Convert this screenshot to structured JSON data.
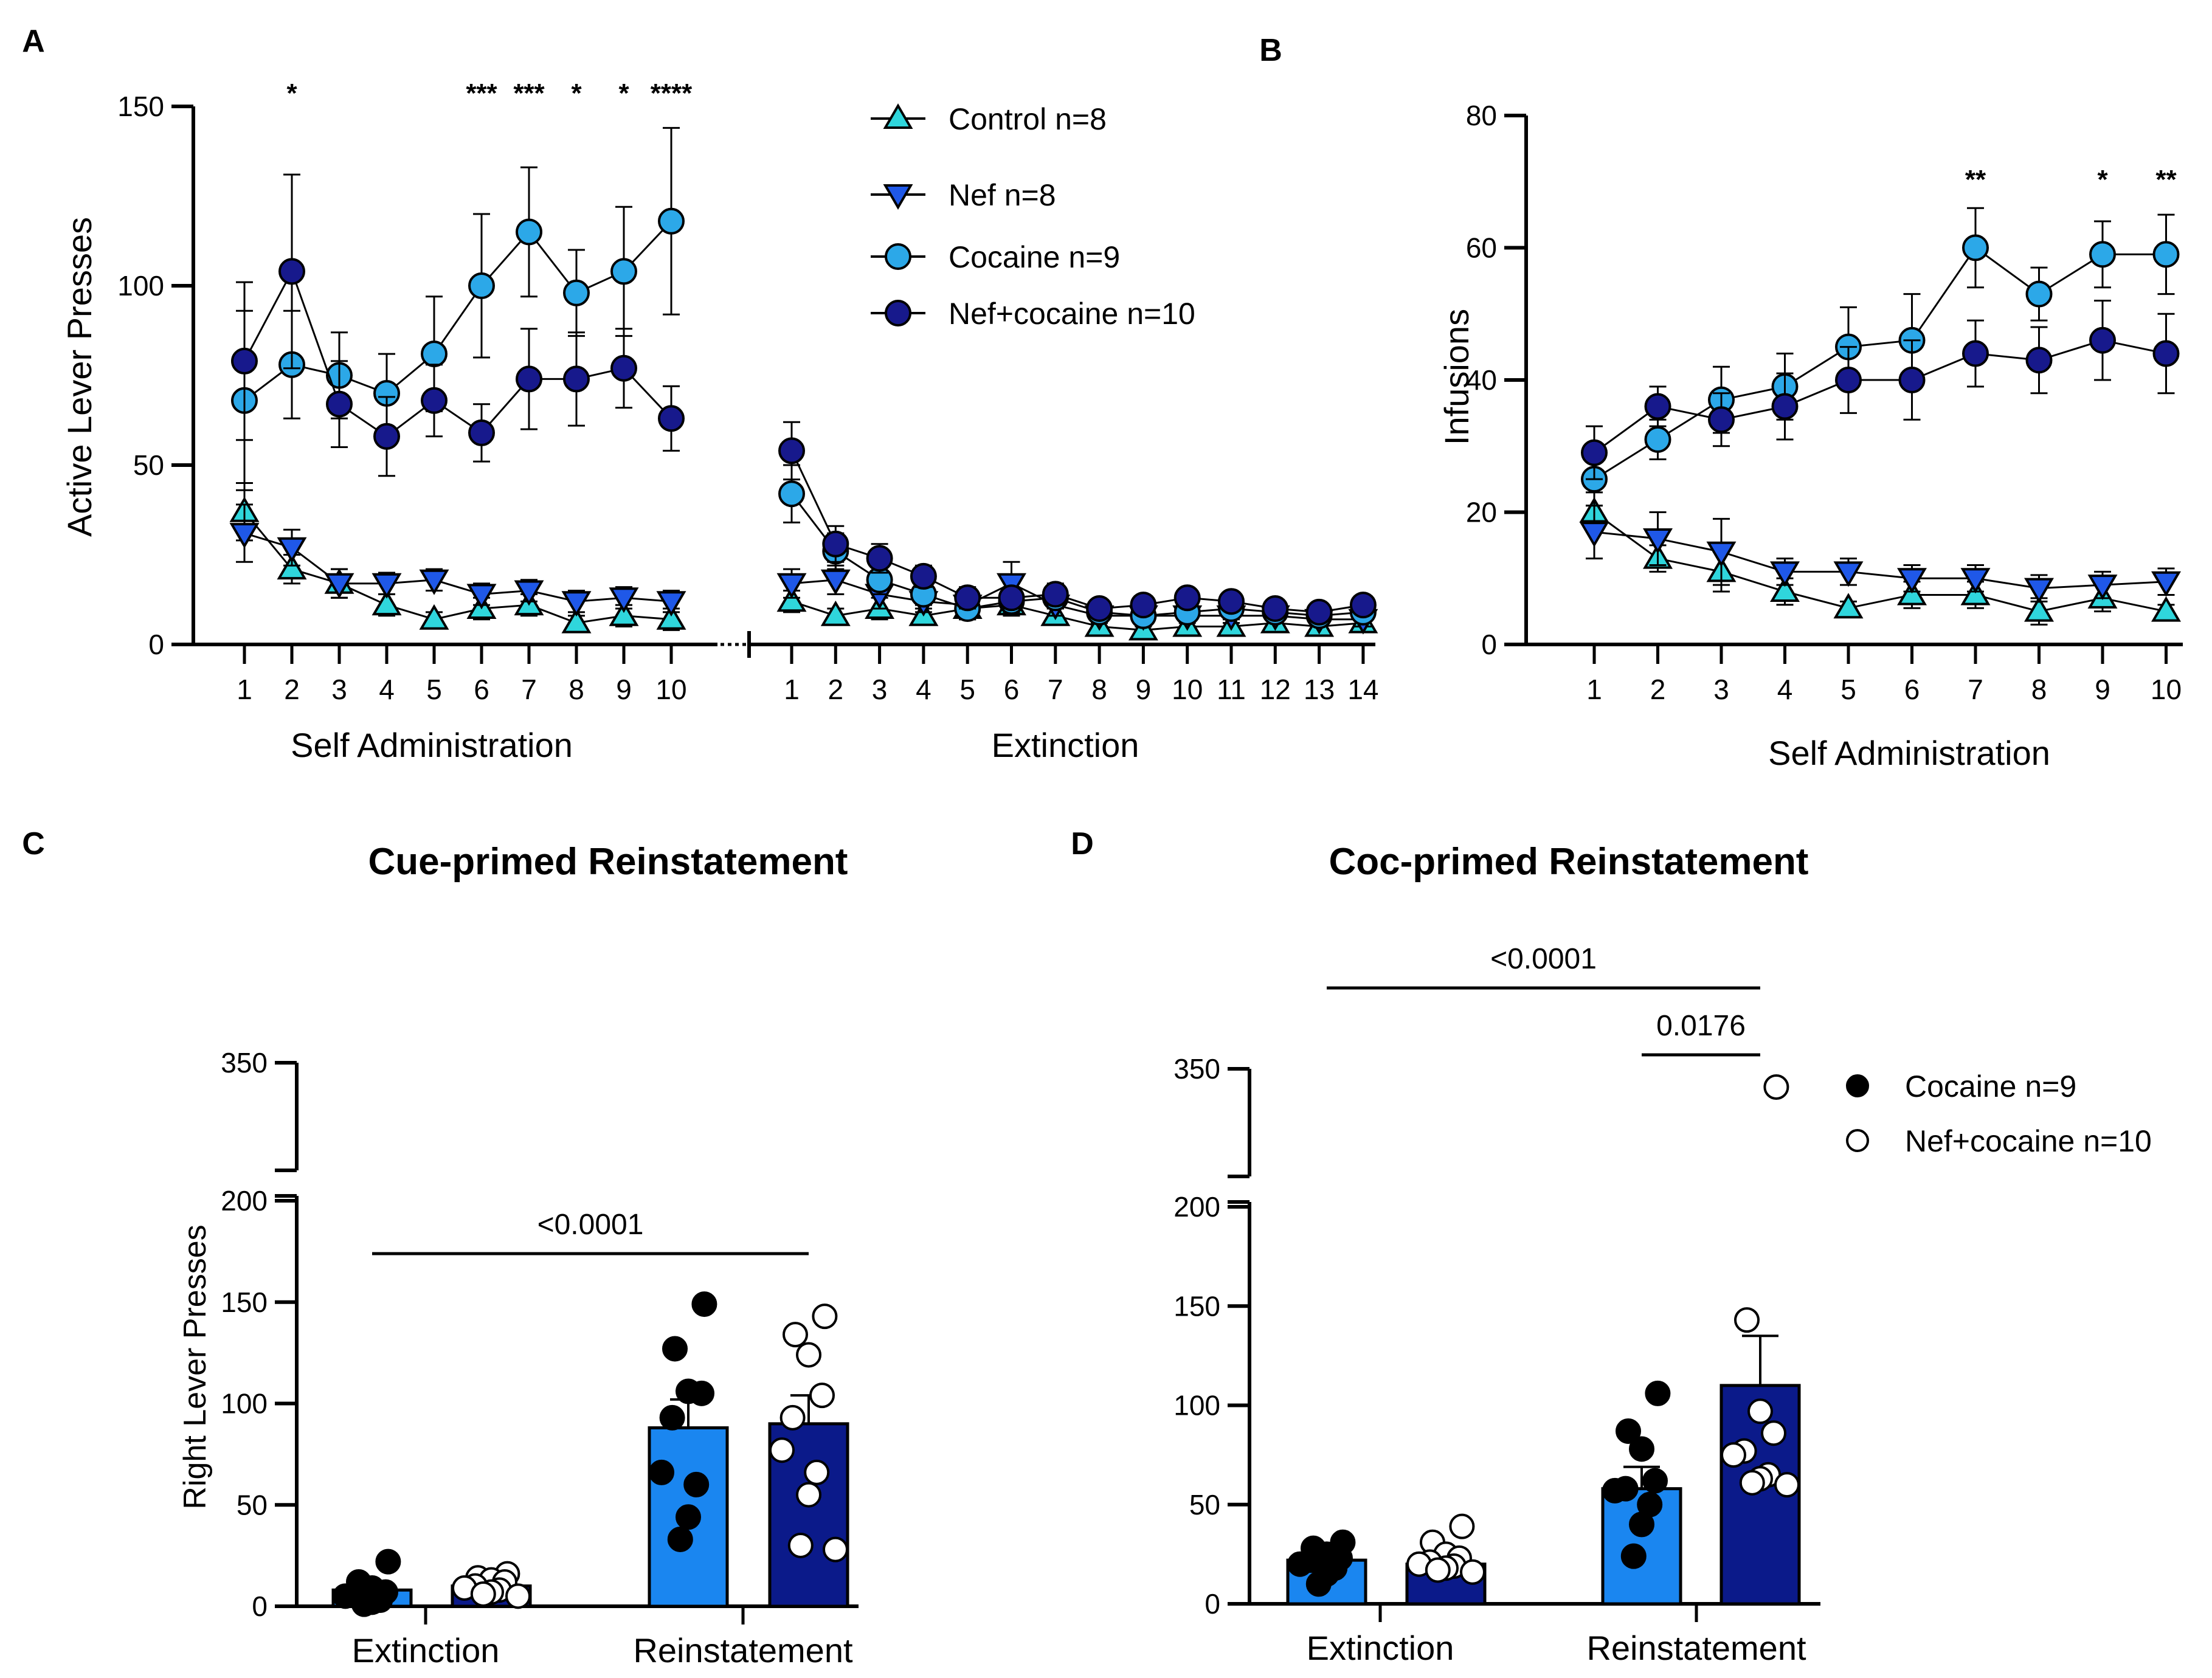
{
  "figure": {
    "panel_letters": [
      "A",
      "B",
      "C",
      "D"
    ]
  },
  "colors": {
    "control": "#2fd6dc",
    "nef": "#1f58e8",
    "cocaine": "#2ca8e8",
    "nefcocaine": "#17198c",
    "bar_cocaine": "#1a86f0",
    "bar_nefcocaine": "#0b1a8a",
    "line": "#000000"
  },
  "chart_data": [
    {
      "panel": "A",
      "type": "line",
      "ylabel": "Active Lever Presses",
      "ylim": [
        0,
        150
      ],
      "yticks": [
        "0",
        "50",
        "100",
        "150"
      ],
      "segments": [
        {
          "xlabel": "Self Administration",
          "x": [
            "1",
            "2",
            "3",
            "4",
            "5",
            "6",
            "7",
            "8",
            "9",
            "10"
          ]
        },
        {
          "xlabel": "Extinction",
          "x": [
            "1",
            "2",
            "3",
            "4",
            "5",
            "6",
            "7",
            "8",
            "9",
            "10",
            "11",
            "12",
            "13",
            "14"
          ]
        }
      ],
      "significance": [
        "",
        "*",
        "",
        "",
        "",
        "***",
        "***",
        "*",
        "*",
        "****"
      ],
      "series": [
        {
          "name": "Control n=8",
          "key": "control",
          "marker": "triangle-up",
          "sa": [
            37,
            21,
            17,
            11,
            7,
            10,
            11,
            6,
            8,
            7
          ],
          "sa_err": [
            8,
            4,
            4,
            3,
            2,
            3,
            3,
            2,
            3,
            3
          ],
          "ext": [
            12,
            8,
            10,
            8,
            10,
            11,
            8,
            5,
            4,
            5,
            5,
            6,
            5,
            6
          ],
          "ext_err": [
            3,
            2,
            3,
            2,
            3,
            3,
            2,
            2,
            1,
            2,
            2,
            2,
            2,
            2
          ]
        },
        {
          "name": "Nef n=8",
          "key": "nef",
          "marker": "triangle-down",
          "sa": [
            31,
            27,
            17,
            17,
            18,
            14,
            15,
            12,
            13,
            12
          ],
          "sa_err": [
            8,
            5,
            4,
            3,
            3,
            3,
            3,
            3,
            3,
            3
          ],
          "ext": [
            17,
            18,
            14,
            12,
            11,
            17,
            11,
            8,
            8,
            8,
            8,
            8,
            7,
            7
          ],
          "ext_err": [
            4,
            4,
            4,
            3,
            3,
            6,
            3,
            2,
            2,
            2,
            2,
            2,
            2,
            2
          ]
        },
        {
          "name": "Cocaine n=9",
          "key": "cocaine",
          "marker": "circle",
          "sa": [
            68,
            78,
            75,
            70,
            81,
            100,
            115,
            98,
            104,
            118
          ],
          "sa_err": [
            25,
            15,
            12,
            11,
            16,
            20,
            18,
            12,
            18,
            26
          ],
          "ext": [
            42,
            26,
            18,
            14,
            10,
            12,
            13,
            9,
            8,
            9,
            10,
            9,
            8,
            9
          ],
          "ext_err": [
            8,
            5,
            4,
            3,
            3,
            3,
            3,
            2,
            2,
            2,
            2,
            2,
            2,
            2
          ]
        },
        {
          "name": "Nef+cocaine n=10",
          "key": "nefcocaine",
          "marker": "circle",
          "sa": [
            79,
            104,
            67,
            58,
            68,
            59,
            74,
            74,
            77,
            63
          ],
          "sa_err": [
            22,
            27,
            12,
            11,
            10,
            8,
            14,
            13,
            11,
            9
          ],
          "ext": [
            54,
            28,
            24,
            19,
            13,
            13,
            14,
            10,
            11,
            13,
            12,
            10,
            9,
            11
          ],
          "ext_err": [
            8,
            5,
            4,
            3,
            3,
            3,
            3,
            2,
            2,
            2,
            2,
            2,
            2,
            2
          ]
        }
      ]
    },
    {
      "panel": "B",
      "type": "line",
      "xlabel": "Self Administration",
      "ylabel": "Infusions",
      "ylim": [
        0,
        80
      ],
      "yticks": [
        "0",
        "20",
        "40",
        "60",
        "80"
      ],
      "x": [
        "1",
        "2",
        "3",
        "4",
        "5",
        "6",
        "7",
        "8",
        "9",
        "10"
      ],
      "significance": [
        "",
        "",
        "",
        "",
        "",
        "",
        "**",
        "",
        "*",
        "**"
      ],
      "series": [
        {
          "name": "Control n=8",
          "key": "control",
          "marker": "triangle-up",
          "values": [
            20,
            13,
            11,
            8,
            5.5,
            7.5,
            7.5,
            5,
            7,
            5
          ],
          "err": [
            3,
            2,
            3,
            2,
            1,
            2,
            2,
            2,
            2,
            1
          ]
        },
        {
          "name": "Nef n=8",
          "key": "nef",
          "marker": "triangle-down",
          "values": [
            17,
            16,
            14,
            11,
            11,
            10,
            10,
            8.5,
            9,
            9.5
          ],
          "err": [
            4,
            4,
            5,
            2,
            2,
            2,
            2,
            2,
            2,
            2
          ]
        },
        {
          "name": "Cocaine n=9",
          "key": "cocaine",
          "marker": "circle",
          "values": [
            25,
            31,
            37,
            39,
            45,
            46,
            60,
            53,
            59,
            59
          ],
          "err": [
            4,
            3,
            5,
            5,
            6,
            7,
            6,
            4,
            5,
            6
          ]
        },
        {
          "name": "Nef+cocaine n=10",
          "key": "nefcocaine",
          "marker": "circle",
          "values": [
            29,
            36,
            34,
            36,
            40,
            40,
            44,
            43,
            46,
            44
          ],
          "err": [
            4,
            3,
            4,
            5,
            5,
            6,
            5,
            5,
            6,
            6
          ]
        }
      ]
    },
    {
      "panel": "C",
      "type": "bar",
      "title": "Cue-primed Reinstatement",
      "ylabel": "Right Lever Presses",
      "categories": [
        "Extinction",
        "Reinstatement"
      ],
      "yticks_lower": [
        "0",
        "50",
        "100",
        "150",
        "200"
      ],
      "ytick_upper": "350",
      "comparisons": [
        {
          "label": "<0.0001",
          "from": "Extinction",
          "to": "Reinstatement"
        }
      ],
      "series": [
        {
          "name": "Cocaine n=9",
          "key": "bar_cocaine",
          "means": [
            8,
            88
          ],
          "sem": [
            2,
            14
          ],
          "points": [
            [
              22,
              12,
              9,
              7,
              6,
              5,
              3,
              2,
              1
            ],
            [
              149,
              127,
              106,
              105,
              93,
              66,
              60,
              44,
              33
            ]
          ]
        },
        {
          "name": "Nef+cocaine n=10",
          "key": "bar_nefcocaine",
          "means": [
            10,
            90
          ],
          "sem": [
            2,
            14
          ],
          "points": [
            [
              16,
              14,
              13,
              12,
              10,
              9,
              8,
              7,
              6,
              5
            ],
            [
              143,
              134,
              124,
              104,
              93,
              77,
              66,
              55,
              30,
              28
            ]
          ]
        }
      ]
    },
    {
      "panel": "D",
      "type": "bar",
      "title": "Coc-primed Reinstatement",
      "categories": [
        "Extinction",
        "Reinstatement"
      ],
      "yticks_lower": [
        "0",
        "50",
        "100",
        "150",
        "200"
      ],
      "ytick_upper": "350",
      "comparisons": [
        {
          "label": "<0.0001",
          "from": "Extinction",
          "to": "Reinstatement"
        },
        {
          "label": "0.0176",
          "from": "Reinstatement",
          "to": "Reinstatement"
        }
      ],
      "legend": [
        {
          "name": "Cocaine n=9",
          "fill": "filled"
        },
        {
          "name": "Nef+cocaine n=10",
          "fill": "open"
        }
      ],
      "series": [
        {
          "name": "Cocaine n=9",
          "key": "bar_cocaine",
          "means": [
            22,
            58
          ],
          "sem": [
            2,
            11
          ],
          "points": [
            [
              31,
              28,
              25,
              23,
              22,
              20,
              18,
              15,
              10
            ],
            [
              106,
              87,
              78,
              62,
              58,
              57,
              50,
              40,
              24
            ]
          ]
        },
        {
          "name": "Nef+cocaine n=10",
          "key": "bar_nefcocaine",
          "means": [
            20,
            110
          ],
          "sem": [
            2,
            25
          ],
          "points": [
            [
              39,
              31,
              25,
              23,
              21,
              20,
              19,
              18,
              17,
              16
            ],
            [
              328,
              143,
              97,
              86,
              77,
              75,
              65,
              63,
              61,
              60
            ]
          ]
        }
      ]
    }
  ]
}
